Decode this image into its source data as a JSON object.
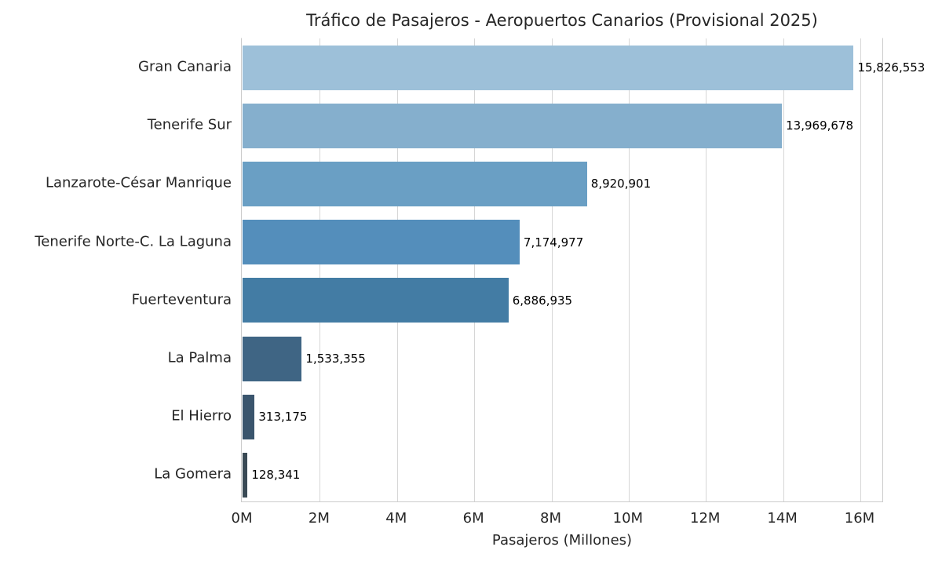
{
  "chart_data": {
    "type": "bar",
    "orientation": "horizontal",
    "title": "Tráfico de Pasajeros - Aeropuertos Canarios (Provisional 2025)",
    "xlabel": "Pasajeros (Millones)",
    "ylabel": "",
    "xlim": [
      0,
      16600000
    ],
    "grid": true,
    "legend": null,
    "x_ticks": [
      {
        "value": 0,
        "label": "0M"
      },
      {
        "value": 2000000,
        "label": "2M"
      },
      {
        "value": 4000000,
        "label": "4M"
      },
      {
        "value": 6000000,
        "label": "6M"
      },
      {
        "value": 8000000,
        "label": "8M"
      },
      {
        "value": 10000000,
        "label": "10M"
      },
      {
        "value": 12000000,
        "label": "12M"
      },
      {
        "value": 14000000,
        "label": "14M"
      },
      {
        "value": 16000000,
        "label": "16M"
      }
    ],
    "categories": [
      "Gran Canaria",
      "Tenerife Sur",
      "Lanzarote-César Manrique",
      "Tenerife Norte-C. La Laguna",
      "Fuerteventura",
      "La Palma",
      "El Hierro",
      "La Gomera"
    ],
    "values": [
      15826553,
      13969678,
      8920901,
      7174977,
      6886935,
      1533355,
      313175,
      128341
    ],
    "value_labels": [
      "15,826,553",
      "13,969,678",
      "8,920,901",
      "7,174,977",
      "6,886,935",
      "1,533,355",
      "313,175",
      "128,341"
    ],
    "colors": [
      "#9dc0d9",
      "#85afcd",
      "#6a9fc4",
      "#548ebb",
      "#437ca4",
      "#3f6584",
      "#3a556d",
      "#3a4a55"
    ]
  }
}
